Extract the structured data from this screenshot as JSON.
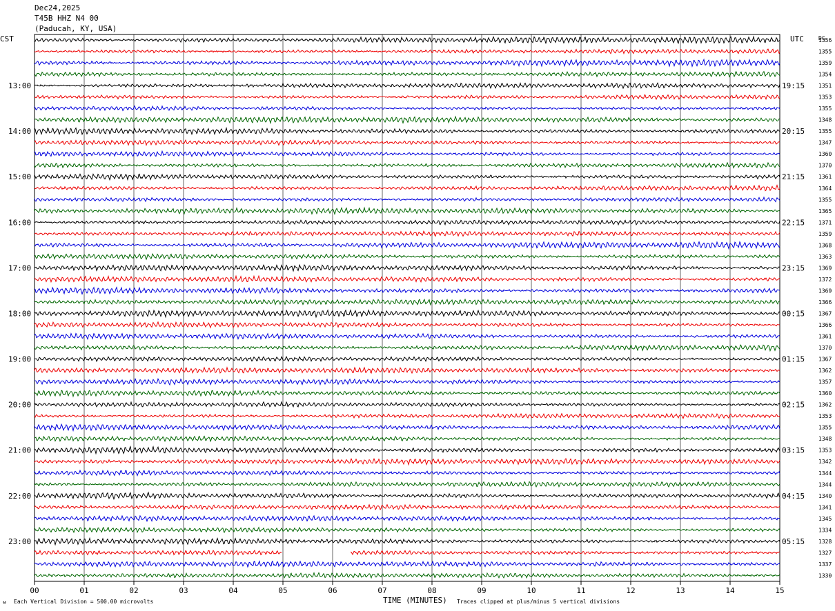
{
  "header": {
    "date": "Dec24,2025",
    "station": "T45B HHZ N4 00",
    "location": "(Paducah, KY, USA)"
  },
  "left_timezone": "CST",
  "right_timezone": "UTC",
  "right_column_label": "DC",
  "footer": {
    "scale_note": "Each Vertical Division =  500.00 microvolts",
    "xlabel": "TIME (MINUTES)",
    "clip_note": "Traces clipped at plus/minus 5 vertical divisions"
  },
  "chart_data": {
    "type": "line",
    "xlabel": "TIME (MINUTES)",
    "xlim": [
      0,
      15
    ],
    "x_ticks": [
      "00",
      "01",
      "02",
      "03",
      "04",
      "05",
      "06",
      "07",
      "08",
      "09",
      "10",
      "11",
      "12",
      "13",
      "14",
      "15"
    ],
    "trace_count": 48,
    "trace_minutes": 15,
    "trace_colors": [
      "#000000",
      "#ee0000",
      "#0000dd",
      "#006600"
    ],
    "left_hour_labels": [
      "13:00",
      "14:00",
      "15:00",
      "16:00",
      "17:00",
      "18:00",
      "19:00",
      "20:00",
      "21:00",
      "22:00",
      "23:00"
    ],
    "right_hour_labels": [
      "19:15",
      "20:15",
      "21:15",
      "22:15",
      "23:15",
      "00:15",
      "01:15",
      "02:15",
      "03:15",
      "04:15",
      "05:15"
    ],
    "dc_offsets": [
      1356,
      1355,
      1359,
      1354,
      1351,
      1353,
      1355,
      1348,
      1355,
      1347,
      1360,
      1370,
      1361,
      1364,
      1355,
      1365,
      1371,
      1359,
      1368,
      1363,
      1369,
      1372,
      1369,
      1366,
      1367,
      1366,
      1361,
      1370,
      1367,
      1362,
      1357,
      1360,
      1362,
      1353,
      1355,
      1348,
      1353,
      1342,
      1344,
      1344,
      1340,
      1341,
      1345,
      1334,
      1328,
      1327,
      1337,
      1330
    ],
    "data_gap": {
      "trace": 45,
      "start_min": 4.98,
      "end_min": 6.35
    }
  }
}
